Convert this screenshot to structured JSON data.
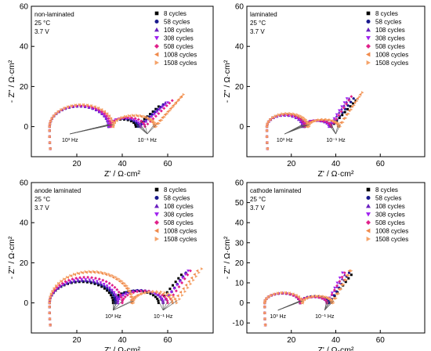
{
  "figure": {
    "colors": [
      "#000000",
      "#1a1a8c",
      "#6a1fbf",
      "#a020f0",
      "#e0208a",
      "#f08a4b",
      "#f5a36a"
    ],
    "legend_labels": [
      "8 cycles",
      "58 cycles",
      "108 cycles",
      "308 cycles",
      "508 cycles",
      "1008 cycles",
      "1508 cycles"
    ]
  },
  "chart_data": [
    {
      "type": "scatter",
      "panel": "top-left",
      "annotations": [
        "non-laminated",
        "25 °C",
        "3.7 V"
      ],
      "freq_labels": [
        "10³ Hz",
        "10⁻¹ Hz"
      ],
      "freq_label_x": [
        17,
        51
      ],
      "xlabel": "Z' / Ω·cm²",
      "ylabel": "- Z'' / Ω·cm²",
      "xlim": [
        0,
        80
      ],
      "ylim": [
        -15,
        60
      ],
      "xticks": [
        20,
        40,
        60
      ],
      "yticks": [
        0,
        20,
        40,
        60
      ],
      "legend_position": "top-right",
      "series": [
        {
          "name": "8 cycles",
          "semicircles": [
            [
              8,
              34,
              0.78
            ],
            [
              34,
              46,
              0.6
            ]
          ],
          "tail_end": [
            56,
            10
          ]
        },
        {
          "name": "58 cycles",
          "semicircles": [
            [
              8,
              34,
              0.78
            ],
            [
              34,
              47,
              0.6
            ]
          ],
          "tail_end": [
            58,
            11
          ]
        },
        {
          "name": "108 cycles",
          "semicircles": [
            [
              8,
              34,
              0.78
            ],
            [
              34,
              48,
              0.6
            ]
          ],
          "tail_end": [
            59,
            12
          ]
        },
        {
          "name": "308 cycles",
          "semicircles": [
            [
              8,
              34,
              0.78
            ],
            [
              34,
              48,
              0.6
            ]
          ],
          "tail_end": [
            60,
            12
          ]
        },
        {
          "name": "508 cycles",
          "semicircles": [
            [
              8,
              35,
              0.78
            ],
            [
              35,
              50,
              0.6
            ]
          ],
          "tail_end": [
            62,
            13
          ]
        },
        {
          "name": "1008 cycles",
          "semicircles": [
            [
              8,
              36,
              0.78
            ],
            [
              36,
              54,
              0.6
            ]
          ],
          "tail_end": [
            66,
            15
          ]
        },
        {
          "name": "1508 cycles",
          "semicircles": [
            [
              8,
              36,
              0.78
            ],
            [
              36,
              55,
              0.6
            ]
          ],
          "tail_end": [
            67,
            16
          ]
        }
      ]
    },
    {
      "type": "scatter",
      "panel": "top-right",
      "annotations": [
        "laminated",
        "25 °C",
        "3.7 V"
      ],
      "freq_labels": [
        "10³ Hz",
        "10⁻¹ Hz"
      ],
      "freq_label_x": [
        17,
        40
      ],
      "xlabel": "Z' / Ω·cm²",
      "ylabel": "- Z'' / Ω·cm²",
      "xlim": [
        0,
        80
      ],
      "ylim": [
        -15,
        60
      ],
      "xticks": [
        20,
        40,
        60
      ],
      "yticks": [
        0,
        20,
        40,
        60
      ],
      "legend_position": "top-right",
      "series": [
        {
          "name": "8 cycles",
          "semicircles": [
            [
              9,
              26,
              0.7
            ],
            [
              26,
              38,
              0.5
            ]
          ],
          "tail_end": [
            49,
            13
          ]
        },
        {
          "name": "58 cycles",
          "semicircles": [
            [
              9,
              26,
              0.7
            ],
            [
              26,
              38,
              0.5
            ]
          ],
          "tail_end": [
            48,
            14
          ]
        },
        {
          "name": "108 cycles",
          "semicircles": [
            [
              9,
              25,
              0.7
            ],
            [
              25,
              37,
              0.5
            ]
          ],
          "tail_end": [
            46,
            14
          ]
        },
        {
          "name": "308 cycles",
          "semicircles": [
            [
              9,
              25,
              0.7
            ],
            [
              25,
              37,
              0.5
            ]
          ],
          "tail_end": [
            45,
            14
          ]
        },
        {
          "name": "508 cycles",
          "semicircles": [
            [
              9,
              26,
              0.7
            ],
            [
              26,
              38,
              0.5
            ]
          ],
          "tail_end": [
            47,
            15
          ]
        },
        {
          "name": "1008 cycles",
          "semicircles": [
            [
              9,
              27,
              0.7
            ],
            [
              27,
              41,
              0.5
            ]
          ],
          "tail_end": [
            51,
            16
          ]
        },
        {
          "name": "1508 cycles",
          "semicircles": [
            [
              9,
              28,
              0.7
            ],
            [
              28,
              42,
              0.5
            ]
          ],
          "tail_end": [
            52,
            17
          ]
        }
      ]
    },
    {
      "type": "scatter",
      "panel": "bottom-left",
      "annotations": [
        "anode laminated",
        "25 °C",
        "3.7 V"
      ],
      "freq_labels": [
        "10³ Hz",
        "10⁻¹ Hz"
      ],
      "freq_label_x": [
        36,
        58
      ],
      "xlabel": "Z' / Ω·cm²",
      "ylabel": "- Z'' / Ω·cm²",
      "xlim": [
        0,
        80
      ],
      "ylim": [
        -15,
        60
      ],
      "xticks": [
        20,
        40,
        60
      ],
      "yticks": [
        0,
        20,
        40,
        60
      ],
      "legend_position": "top-right",
      "series": [
        {
          "name": "8 cycles",
          "semicircles": [
            [
              8,
              36,
              0.75
            ],
            [
              36,
              56,
              0.6
            ]
          ],
          "tail_end": [
            66,
            14
          ]
        },
        {
          "name": "58 cycles",
          "semicircles": [
            [
              8,
              37,
              0.75
            ],
            [
              37,
              58,
              0.6
            ]
          ],
          "tail_end": [
            68,
            15
          ]
        },
        {
          "name": "108 cycles",
          "semicircles": [
            [
              8,
              38,
              0.75
            ],
            [
              38,
              58,
              0.6
            ]
          ],
          "tail_end": [
            68,
            15
          ]
        },
        {
          "name": "308 cycles",
          "semicircles": [
            [
              8,
              38,
              0.78
            ],
            [
              38,
              58,
              0.6
            ]
          ],
          "tail_end": [
            69,
            16
          ]
        },
        {
          "name": "508 cycles",
          "semicircles": [
            [
              8,
              40,
              0.8
            ],
            [
              40,
              60,
              0.6
            ]
          ],
          "tail_end": [
            70,
            16
          ]
        },
        {
          "name": "1008 cycles",
          "semicircles": [
            [
              8,
              44,
              0.85
            ],
            [
              44,
              62,
              0.6
            ]
          ],
          "tail_end": [
            73,
            16
          ]
        },
        {
          "name": "1508 cycles",
          "semicircles": [
            [
              8,
              45,
              0.85
            ],
            [
              45,
              64,
              0.6
            ]
          ],
          "tail_end": [
            75,
            17
          ]
        }
      ]
    },
    {
      "type": "scatter",
      "panel": "bottom-right",
      "annotations": [
        "cathode laminated",
        "25 °C",
        "3.7 V"
      ],
      "freq_labels": [
        "10³ Hz",
        "10⁻¹ Hz"
      ],
      "freq_label_x": [
        14,
        35
      ],
      "xlabel": "Z' / Ω·cm²",
      "ylabel": "- Z'' / Ω·cm²",
      "xlim": [
        0,
        80
      ],
      "ylim": [
        -15,
        60
      ],
      "xticks": [
        20,
        40,
        60
      ],
      "yticks": [
        -10,
        0,
        10,
        20,
        30,
        40,
        50,
        60
      ],
      "legend_position": "top-right",
      "series": [
        {
          "name": "8 cycles",
          "semicircles": [
            [
              8,
              24,
              0.6
            ],
            [
              24,
              37,
              0.5
            ]
          ],
          "tail_end": [
            47,
            14
          ]
        },
        {
          "name": "58 cycles",
          "semicircles": [
            [
              8,
              24,
              0.6
            ],
            [
              24,
              37,
              0.5
            ]
          ],
          "tail_end": [
            46,
            15
          ]
        },
        {
          "name": "108 cycles",
          "semicircles": [
            [
              8,
              24,
              0.6
            ],
            [
              24,
              36,
              0.5
            ]
          ],
          "tail_end": [
            44,
            14
          ]
        },
        {
          "name": "308 cycles",
          "semicircles": [
            [
              8,
              24,
              0.6
            ],
            [
              24,
              36,
              0.5
            ]
          ],
          "tail_end": [
            43,
            15
          ]
        },
        {
          "name": "508 cycles",
          "semicircles": [
            [
              8,
              24,
              0.6
            ],
            [
              24,
              36,
              0.5
            ]
          ],
          "tail_end": [
            44,
            15
          ]
        },
        {
          "name": "1008 cycles",
          "semicircles": [
            [
              8,
              25,
              0.6
            ],
            [
              25,
              38,
              0.5
            ]
          ],
          "tail_end": [
            46,
            16
          ]
        },
        {
          "name": "1508 cycles",
          "semicircles": [
            [
              8,
              25,
              0.6
            ],
            [
              25,
              39,
              0.5
            ]
          ],
          "tail_end": [
            47,
            16
          ]
        }
      ]
    }
  ]
}
